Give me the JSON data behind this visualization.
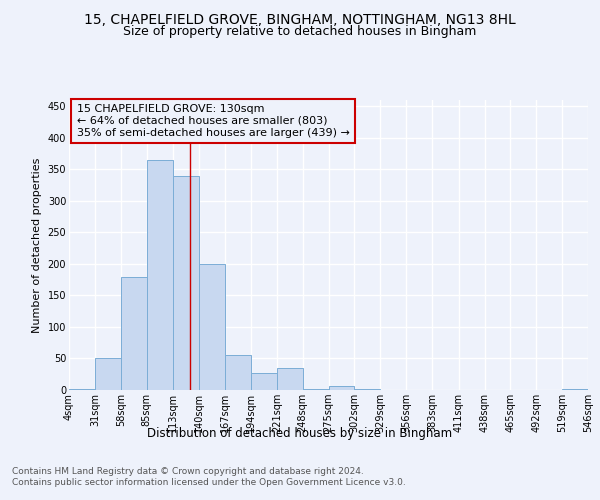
{
  "title1": "15, CHAPELFIELD GROVE, BINGHAM, NOTTINGHAM, NG13 8HL",
  "title2": "Size of property relative to detached houses in Bingham",
  "xlabel": "Distribution of detached houses by size in Bingham",
  "ylabel": "Number of detached properties",
  "bin_edges": [
    4,
    31,
    58,
    85,
    113,
    140,
    167,
    194,
    221,
    248,
    275,
    302,
    329,
    356,
    383,
    411,
    438,
    465,
    492,
    519,
    546
  ],
  "bar_heights": [
    2,
    50,
    180,
    365,
    340,
    200,
    55,
    27,
    35,
    2,
    7,
    2,
    0,
    0,
    0,
    0,
    0,
    0,
    0,
    2
  ],
  "bar_facecolor": "#c8d8f0",
  "bar_edgecolor": "#7badd6",
  "vline_x": 130,
  "vline_color": "#cc0000",
  "annotation_line1": "15 CHAPELFIELD GROVE: 130sqm",
  "annotation_line2": "← 64% of detached houses are smaller (803)",
  "annotation_line3": "35% of semi-detached houses are larger (439) →",
  "annotation_box_color": "#cc0000",
  "ylim": [
    0,
    460
  ],
  "background_color": "#eef2fb",
  "grid_color": "#ffffff",
  "footnote": "Contains HM Land Registry data © Crown copyright and database right 2024.\nContains public sector information licensed under the Open Government Licence v3.0.",
  "title1_fontsize": 10,
  "title2_fontsize": 9,
  "xlabel_fontsize": 8.5,
  "ylabel_fontsize": 8,
  "tick_fontsize": 7,
  "annot_fontsize": 8,
  "footnote_fontsize": 6.5
}
